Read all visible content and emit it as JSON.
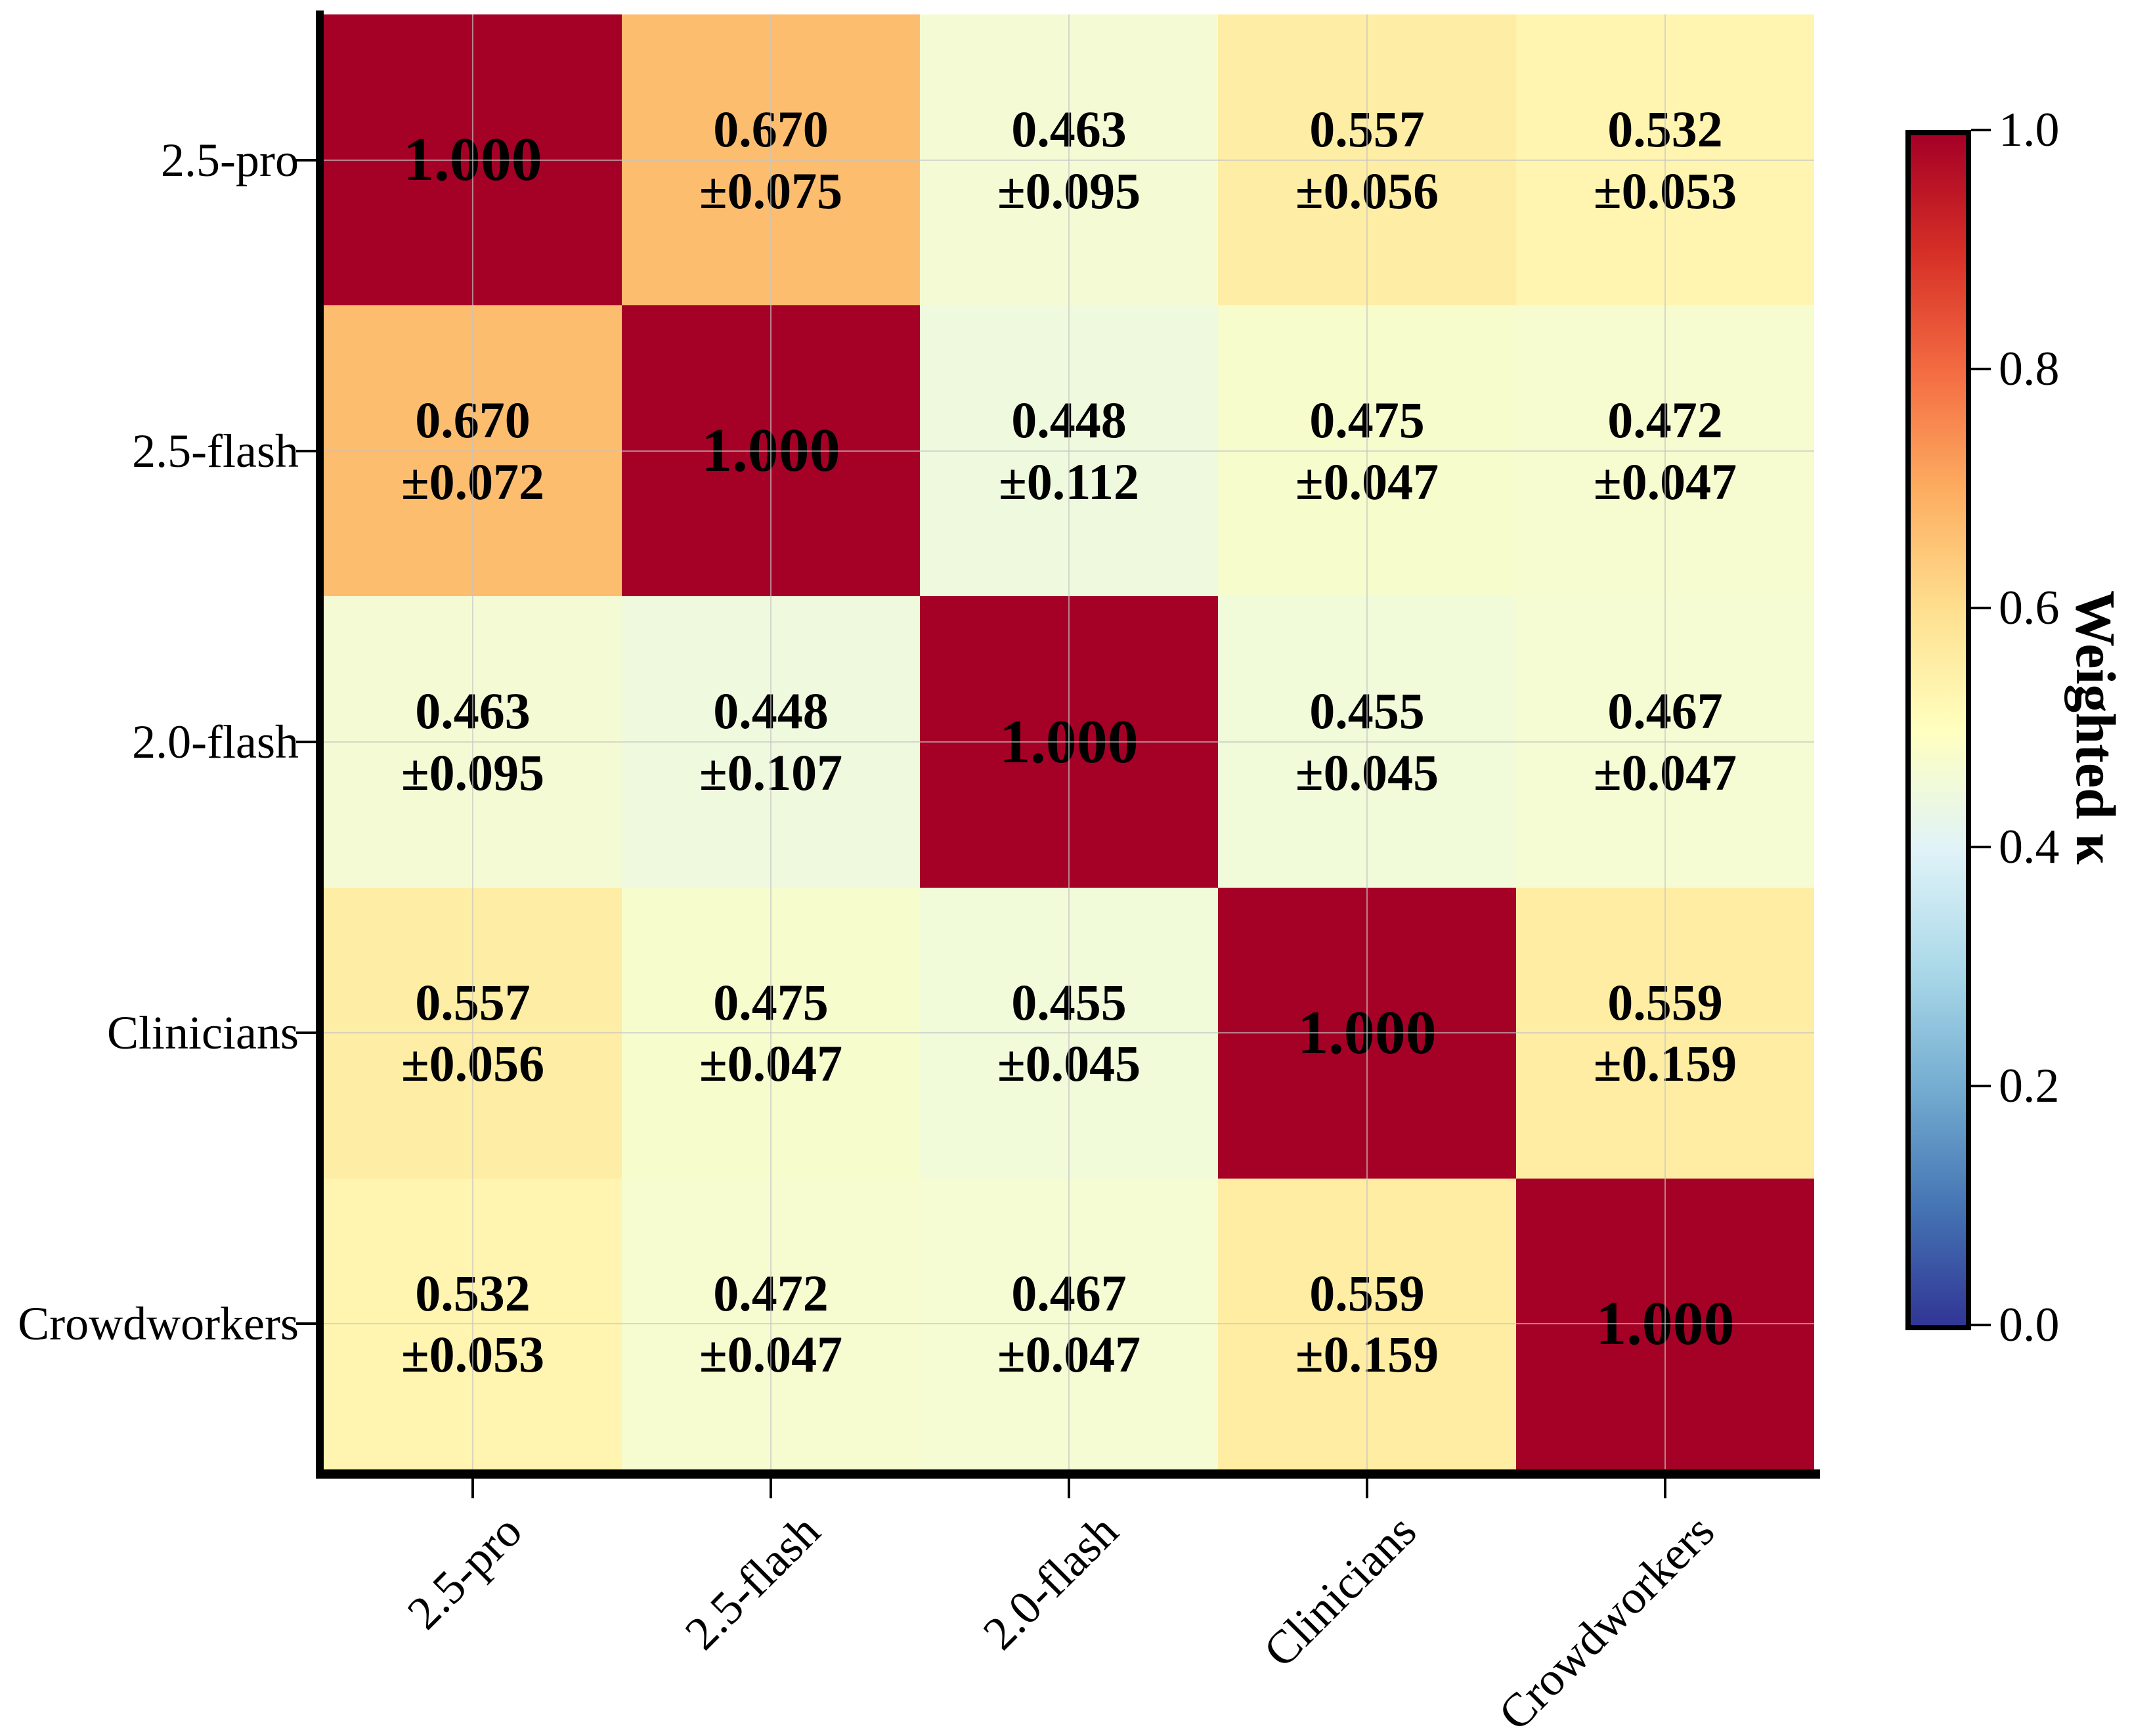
{
  "figure": {
    "background": "#ffffff"
  },
  "chart_data": {
    "type": "heatmap",
    "title": "",
    "xlabel": "",
    "ylabel": "",
    "categories": [
      "2.5-pro",
      "2.5-flash",
      "2.0-flash",
      "Clinicians",
      "Crowdworkers"
    ],
    "matrix_values": [
      [
        1.0,
        0.67,
        0.463,
        0.557,
        0.532
      ],
      [
        0.67,
        1.0,
        0.448,
        0.475,
        0.472
      ],
      [
        0.463,
        0.448,
        1.0,
        0.455,
        0.467
      ],
      [
        0.557,
        0.475,
        0.455,
        1.0,
        0.559
      ],
      [
        0.532,
        0.472,
        0.467,
        0.559,
        1.0
      ]
    ],
    "matrix_errors": [
      [
        null,
        "±0.075",
        "±0.095",
        "±0.056",
        "±0.053"
      ],
      [
        "±0.072",
        null,
        "±0.112",
        "±0.047",
        "±0.047"
      ],
      [
        "±0.095",
        "±0.107",
        null,
        "±0.045",
        "±0.047"
      ],
      [
        "±0.056",
        "±0.047",
        "±0.045",
        null,
        "±0.159"
      ],
      [
        "±0.053",
        "±0.047",
        "±0.047",
        "±0.159",
        null
      ]
    ],
    "value_decimals": 3,
    "grid": true,
    "colorbar": {
      "label": "Weighted κ",
      "ticks": [
        "1.0",
        "0.8",
        "0.6",
        "0.4",
        "0.2",
        "0.0"
      ],
      "vmin": 0.0,
      "vmax": 1.0,
      "position": "right"
    },
    "colormap": {
      "name": "RdYlBu_r",
      "anchors": [
        "#313695",
        "#4575b4",
        "#74add1",
        "#abd9e9",
        "#e0f3f8",
        "#ffffbf",
        "#fee090",
        "#fdae61",
        "#f46d43",
        "#d73027",
        "#a50026"
      ]
    }
  },
  "colors": {
    "spine": "#000000",
    "gridline": "#c4c4c4",
    "cell_text": "#000000",
    "tick_text": "#000000",
    "diag_color": "#a50026"
  }
}
